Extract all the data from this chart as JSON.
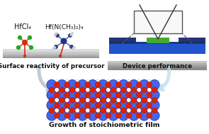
{
  "bg_color": "#ffffff",
  "title_surface": "Surface reactivity of precursor",
  "title_device": "Device performance",
  "title_growth": "Growth of stoichiometric film",
  "label_hfcl4": "HfCl₄",
  "label_hfamide": "Hf(N(CH₃)₂)₄",
  "blue_atom": "#4466ee",
  "red_atom": "#dd2200",
  "white_atom": "#ffffff",
  "green_color": "#44aa33",
  "dark_blue_electrode": "#223377",
  "device_blue": "#2255cc",
  "substrate_light": "#d8d8d8",
  "substrate_dark": "#a0a0a0",
  "text_color": "#111111",
  "arrow_left_color": "#aabbcc",
  "arrow_right_color": "#bbddee",
  "hf_color": "#cc3311",
  "cl_color": "#22aa22",
  "n_color": "#334488",
  "c_color": "#ddddee",
  "bond_color": "#555555"
}
